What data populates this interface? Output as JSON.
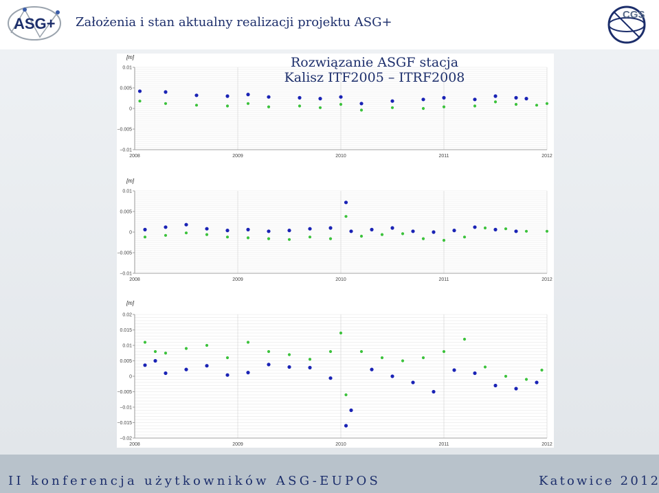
{
  "header": {
    "title": "Założenia i stan aktualny realizacji projektu ASG+",
    "logo_left_text": "ASG+",
    "logo_right_text": "CGS"
  },
  "slide": {
    "title_line1": "Rozwiązanie ASGF   stacja",
    "title_line2": "Kalisz ITF2005 – ITRF2008"
  },
  "footer": {
    "left": "II konferencja użytkowników ASG-EUPOS",
    "right": "Katowice 2012"
  },
  "colors": {
    "series_blue": "#1a23b5",
    "series_green": "#3cc23c",
    "text_navy": "#1c2e6b"
  },
  "chart_data": [
    {
      "type": "scatter",
      "unit_label": "[m]",
      "x_ticks": [
        "2008",
        "2009",
        "2010",
        "2011",
        "2012"
      ],
      "y_ticks": [
        "0.01",
        "0.005",
        "0",
        "−0.005",
        "−0.01"
      ],
      "xlim": [
        2008,
        2012
      ],
      "ylim": [
        -0.01,
        0.01
      ],
      "grid": true,
      "series": [
        {
          "color": "blue",
          "x": [
            2008.05,
            2008.3,
            2008.6,
            2008.9,
            2009.1,
            2009.3,
            2009.6,
            2009.8,
            2010.0,
            2010.2,
            2010.5,
            2010.8,
            2011.0,
            2011.3,
            2011.5,
            2011.7,
            2011.8
          ],
          "y": [
            0.0042,
            0.004,
            0.0032,
            0.003,
            0.0034,
            0.0028,
            0.0026,
            0.0024,
            0.0028,
            0.0012,
            0.0018,
            0.0022,
            0.0026,
            0.0022,
            0.003,
            0.0026,
            0.0024
          ]
        },
        {
          "color": "green",
          "x": [
            2008.05,
            2008.3,
            2008.6,
            2008.9,
            2009.1,
            2009.3,
            2009.6,
            2009.8,
            2010.0,
            2010.2,
            2010.5,
            2010.8,
            2011.0,
            2011.3,
            2011.5,
            2011.7,
            2011.9,
            2012.0
          ],
          "y": [
            0.0018,
            0.0012,
            0.0008,
            0.0006,
            0.0012,
            0.0004,
            0.0006,
            0.0002,
            0.001,
            -0.0004,
            0.0002,
            0.0,
            0.0004,
            0.0006,
            0.0016,
            0.001,
            0.0008,
            0.0012
          ]
        }
      ]
    },
    {
      "type": "scatter",
      "unit_label": "[m]",
      "x_ticks": [
        "2008",
        "2009",
        "2010",
        "2011",
        "2012"
      ],
      "y_ticks": [
        "0.01",
        "0.005",
        "0",
        "−0.005",
        "−0.01"
      ],
      "xlim": [
        2008,
        2012
      ],
      "ylim": [
        -0.01,
        0.01
      ],
      "grid": true,
      "series": [
        {
          "color": "blue",
          "x": [
            2008.1,
            2008.3,
            2008.5,
            2008.7,
            2008.9,
            2009.1,
            2009.3,
            2009.5,
            2009.7,
            2009.9,
            2010.05,
            2010.1,
            2010.3,
            2010.5,
            2010.7,
            2010.9,
            2011.1,
            2011.3,
            2011.5,
            2011.7
          ],
          "y": [
            0.0006,
            0.0012,
            0.0018,
            0.0008,
            0.0004,
            0.0006,
            0.0002,
            0.0004,
            0.0008,
            0.001,
            0.0072,
            0.0002,
            0.0006,
            0.001,
            0.0002,
            0.0,
            0.0004,
            0.0012,
            0.0006,
            0.0002
          ]
        },
        {
          "color": "green",
          "x": [
            2008.1,
            2008.3,
            2008.5,
            2008.7,
            2008.9,
            2009.1,
            2009.3,
            2009.5,
            2009.7,
            2009.9,
            2010.05,
            2010.2,
            2010.4,
            2010.6,
            2010.8,
            2011.0,
            2011.2,
            2011.4,
            2011.6,
            2011.8,
            2012.0
          ],
          "y": [
            -0.0012,
            -0.0008,
            -0.0002,
            -0.0006,
            -0.0012,
            -0.0014,
            -0.0016,
            -0.0018,
            -0.0012,
            -0.0016,
            0.0038,
            -0.001,
            -0.0006,
            -0.0004,
            -0.0016,
            -0.002,
            -0.0012,
            0.001,
            0.0008,
            0.0002,
            0.0002
          ]
        }
      ]
    },
    {
      "type": "scatter",
      "unit_label": "[m]",
      "x_ticks": [
        "2008",
        "2009",
        "2010",
        "2011",
        "2012"
      ],
      "y_ticks": [
        "0.02",
        "0.015",
        "0.01",
        "0.005",
        "0",
        "−0.005",
        "−0.01",
        "−0.015",
        "−0.02"
      ],
      "xlim": [
        2008,
        2012
      ],
      "ylim": [
        -0.02,
        0.02
      ],
      "grid": true,
      "series": [
        {
          "color": "blue",
          "x": [
            2008.1,
            2008.2,
            2008.3,
            2008.5,
            2008.7,
            2008.9,
            2009.1,
            2009.3,
            2009.5,
            2009.7,
            2009.9,
            2010.05,
            2010.1,
            2010.3,
            2010.5,
            2010.7,
            2010.9,
            2011.1,
            2011.3,
            2011.5,
            2011.7,
            2011.9
          ],
          "y": [
            0.0036,
            0.005,
            0.001,
            0.0022,
            0.0034,
            0.0004,
            0.0012,
            0.0038,
            0.003,
            0.0028,
            -0.0006,
            -0.016,
            -0.011,
            0.0022,
            0.0,
            -0.002,
            -0.005,
            0.002,
            0.001,
            -0.003,
            -0.004,
            -0.002
          ]
        },
        {
          "color": "green",
          "x": [
            2008.1,
            2008.2,
            2008.3,
            2008.5,
            2008.7,
            2008.9,
            2009.1,
            2009.3,
            2009.5,
            2009.7,
            2009.9,
            2010.0,
            2010.05,
            2010.2,
            2010.4,
            2010.6,
            2010.8,
            2011.0,
            2011.2,
            2011.4,
            2011.6,
            2011.8,
            2011.95
          ],
          "y": [
            0.011,
            0.008,
            0.0075,
            0.009,
            0.01,
            0.006,
            0.011,
            0.008,
            0.007,
            0.0055,
            0.008,
            0.014,
            -0.006,
            0.008,
            0.006,
            0.005,
            0.006,
            0.008,
            0.012,
            0.003,
            0.0,
            -0.001,
            0.002
          ]
        }
      ]
    }
  ]
}
